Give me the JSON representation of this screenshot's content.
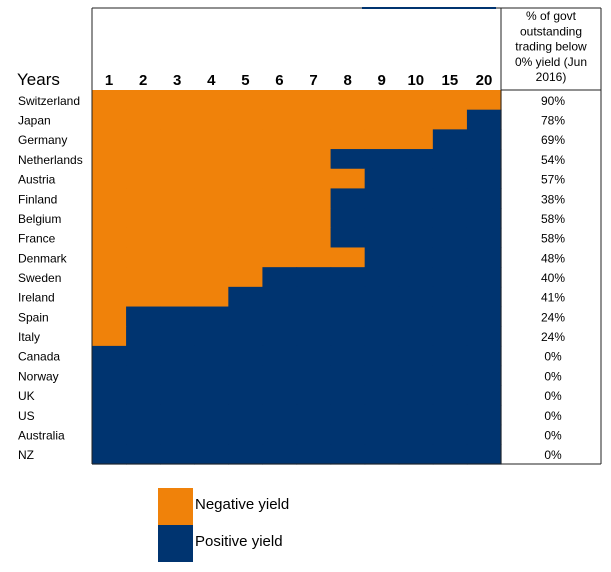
{
  "chart_data": {
    "type": "heatmap",
    "row_header": "Years",
    "columns": [
      "1",
      "2",
      "3",
      "4",
      "5",
      "6",
      "7",
      "8",
      "9",
      "10",
      "15",
      "20"
    ],
    "side_header": "% of govt outstanding trading below 0% yield (Jun 2016)",
    "side_header_lines": [
      "% of govt",
      "outstanding",
      "trading below",
      "0% yield (Jun",
      "2016)"
    ],
    "rows": [
      {
        "country": "Switzerland",
        "negative_maturities": 12,
        "pct": "90%"
      },
      {
        "country": "Japan",
        "negative_maturities": 11,
        "pct": "78%"
      },
      {
        "country": "Germany",
        "negative_maturities": 10,
        "pct": "69%"
      },
      {
        "country": "Netherlands",
        "negative_maturities": 7,
        "pct": "54%"
      },
      {
        "country": "Austria",
        "negative_maturities": 8,
        "pct": "57%"
      },
      {
        "country": "Finland",
        "negative_maturities": 7,
        "pct": "38%"
      },
      {
        "country": "Belgium",
        "negative_maturities": 7,
        "pct": "58%"
      },
      {
        "country": "France",
        "negative_maturities": 7,
        "pct": "58%"
      },
      {
        "country": "Denmark",
        "negative_maturities": 8,
        "pct": "48%"
      },
      {
        "country": "Sweden",
        "negative_maturities": 5,
        "pct": "40%"
      },
      {
        "country": "Ireland",
        "negative_maturities": 4,
        "pct": "41%"
      },
      {
        "country": "Spain",
        "negative_maturities": 1,
        "pct": "24%"
      },
      {
        "country": "Italy",
        "negative_maturities": 1,
        "pct": "24%"
      },
      {
        "country": "Canada",
        "negative_maturities": 0,
        "pct": "0%"
      },
      {
        "country": "Norway",
        "negative_maturities": 0,
        "pct": "0%"
      },
      {
        "country": "UK",
        "negative_maturities": 0,
        "pct": "0%"
      },
      {
        "country": "US",
        "negative_maturities": 0,
        "pct": "0%"
      },
      {
        "country": "Australia",
        "negative_maturities": 0,
        "pct": "0%"
      },
      {
        "country": "NZ",
        "negative_maturities": 0,
        "pct": "0%"
      }
    ],
    "legend": [
      {
        "label": "Negative yield",
        "color": "#F0820A"
      },
      {
        "label": "Positive yield",
        "color": "#003470"
      }
    ],
    "colors": {
      "negative": "#F0820A",
      "positive": "#003470"
    }
  }
}
